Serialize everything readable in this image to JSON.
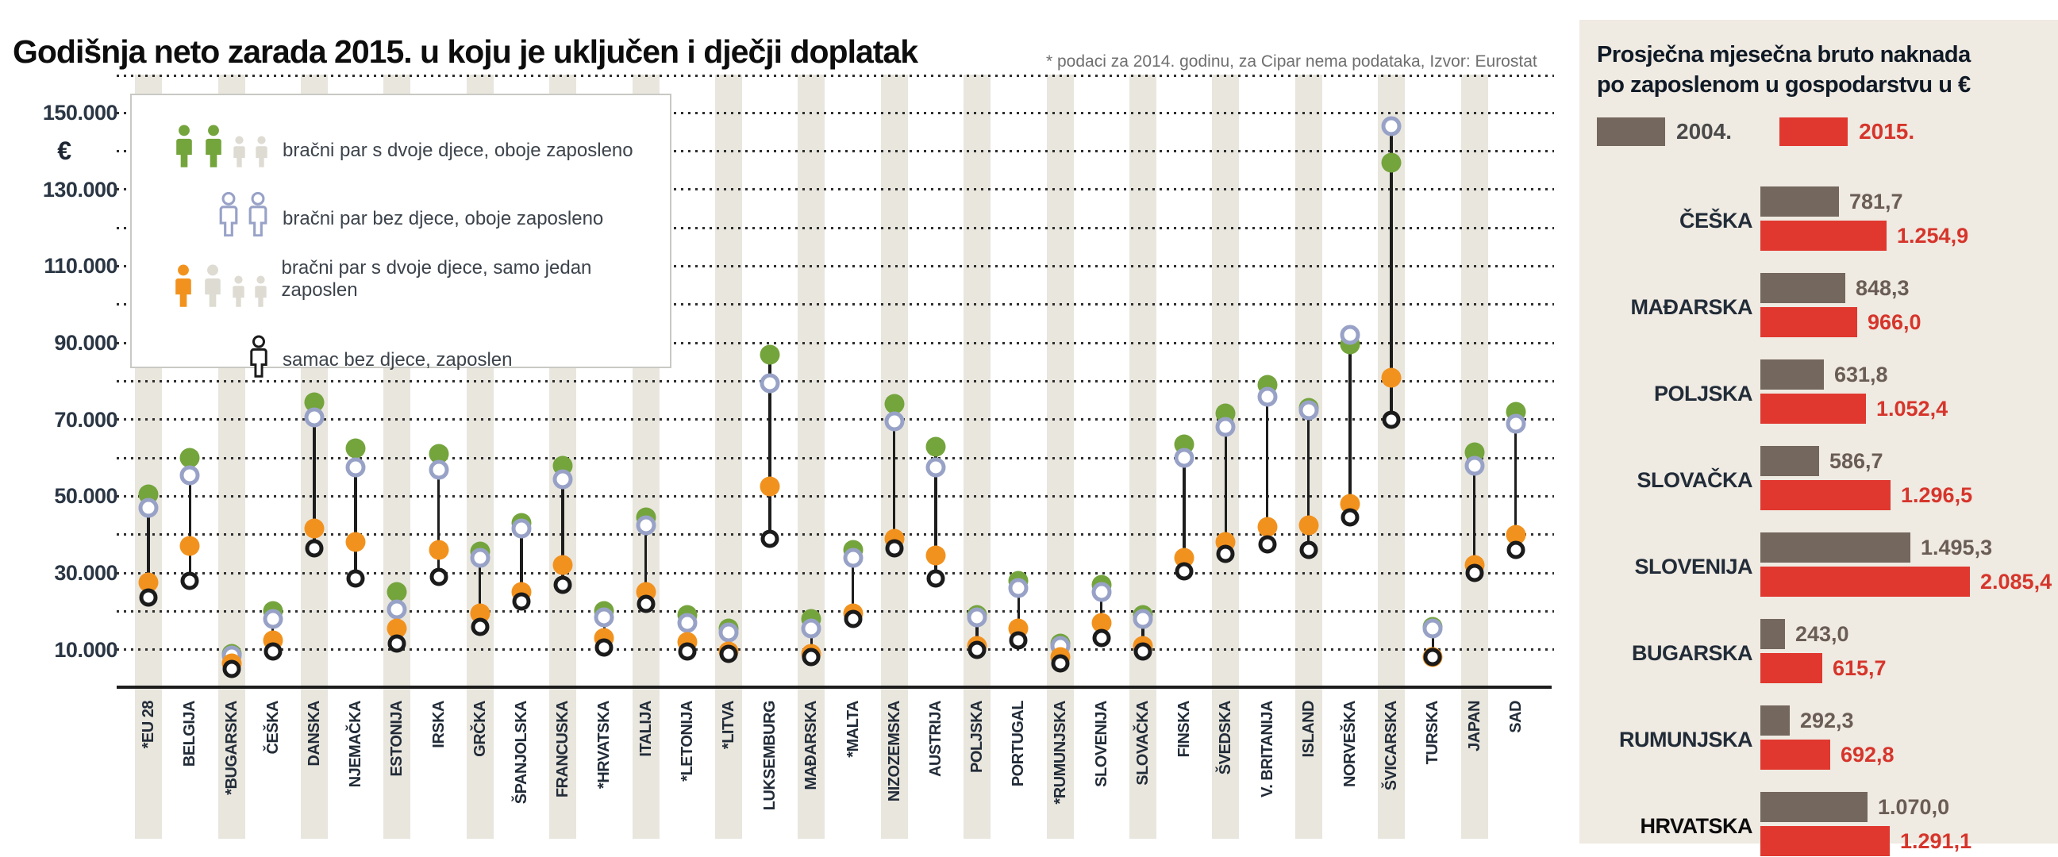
{
  "main": {
    "title": "Godišnja neto zarada 2015. u koju je uključen i dječji doplatak",
    "note": "* podaci za 2014. godinu, za Cipar nema podataka, Izvor: Eurostat",
    "currency_symbol": "€"
  },
  "legend": {
    "items": [
      {
        "series": "both_employed_2kids",
        "label": "bračni par s dvoje djece, oboje zaposleno",
        "color": "#74a43c",
        "style": "filled",
        "icons": "2-green-adults-2-gray-children"
      },
      {
        "series": "both_employed_no_kids",
        "label": "bračni par bez djece, oboje zaposleno",
        "color": "#98a2c7",
        "style": "outline",
        "icons": "2-blue-outline-adults"
      },
      {
        "series": "one_employed_2kids",
        "label": "bračni par s dvoje djece, samo jedan zaposlen",
        "color": "#f2921e",
        "style": "filled",
        "icons": "1-orange-adult-1-gray-adult-2-gray-children"
      },
      {
        "series": "single",
        "label": "samac bez djece, zaposlen",
        "color": "#1b1b1b",
        "style": "outline",
        "icons": "1-black-outline-adult"
      }
    ]
  },
  "panel": {
    "title_line1": "Prosječna mjesečna  bruto naknada",
    "title_line2": "po zaposlenom u gospodarstvu u €",
    "legend": [
      {
        "label": "2004.",
        "color": "#74675e",
        "text_color": "#4a4a4a"
      },
      {
        "label": "2015.",
        "color": "#e0382f",
        "text_color": "#d6352b"
      }
    ]
  },
  "chart_data": [
    {
      "type": "scatter",
      "subtype": "dumbbell",
      "title": "Godišnja neto zarada 2015. u koju je uključen i dječji doplatak",
      "ylabel": "€",
      "ylim": [
        0,
        160000
      ],
      "grid": "dotted-horizontal-every-10000",
      "yticks_labeled": [
        150000,
        130000,
        110000,
        90000,
        70000,
        50000,
        30000,
        10000
      ],
      "ytick_labels": [
        "150.000",
        "130.000",
        "110.000",
        "90.000",
        "70.000",
        "50.000",
        "30.000",
        "10.000"
      ],
      "legend_position": "top-left-inside",
      "series_keys": [
        "both_employed_2kids",
        "both_employed_no_kids",
        "one_employed_2kids",
        "single"
      ],
      "countries": [
        {
          "name": "*EU 28",
          "both_employed_2kids": 50500,
          "both_employed_no_kids": 47000,
          "one_employed_2kids": 27500,
          "single": 23500
        },
        {
          "name": "BELGIJA",
          "both_employed_2kids": 60000,
          "both_employed_no_kids": 55500,
          "one_employed_2kids": 37000,
          "single": 28000
        },
        {
          "name": "*BUGARSKA",
          "both_employed_2kids": 9000,
          "both_employed_no_kids": 8500,
          "one_employed_2kids": 6500,
          "single": 5000
        },
        {
          "name": "ČEŠKA",
          "both_employed_2kids": 20000,
          "both_employed_no_kids": 18000,
          "one_employed_2kids": 12500,
          "single": 9500
        },
        {
          "name": "DANSKA",
          "both_employed_2kids": 74500,
          "both_employed_no_kids": 70500,
          "one_employed_2kids": 41500,
          "single": 36500
        },
        {
          "name": "NJEMAČKA",
          "both_employed_2kids": 62500,
          "both_employed_no_kids": 57500,
          "one_employed_2kids": 38000,
          "single": 28500
        },
        {
          "name": "ESTONIJA",
          "both_employed_2kids": 25000,
          "both_employed_no_kids": 20500,
          "one_employed_2kids": 15500,
          "single": 11500
        },
        {
          "name": "IRSKA",
          "both_employed_2kids": 61000,
          "both_employed_no_kids": 57000,
          "one_employed_2kids": 36000,
          "single": 29000
        },
        {
          "name": "GRČKA",
          "both_employed_2kids": 35500,
          "both_employed_no_kids": 34000,
          "one_employed_2kids": 19500,
          "single": 16000
        },
        {
          "name": "ŠPANJOLSKA",
          "both_employed_2kids": 43000,
          "both_employed_no_kids": 41500,
          "one_employed_2kids": 25000,
          "single": 22500
        },
        {
          "name": "FRANCUSKA",
          "both_employed_2kids": 58000,
          "both_employed_no_kids": 54500,
          "one_employed_2kids": 32000,
          "single": 27000
        },
        {
          "name": "*HRVATSKA",
          "both_employed_2kids": 20000,
          "both_employed_no_kids": 18500,
          "one_employed_2kids": 13000,
          "single": 10500
        },
        {
          "name": "ITALIJA",
          "both_employed_2kids": 44500,
          "both_employed_no_kids": 42500,
          "one_employed_2kids": 25000,
          "single": 22000
        },
        {
          "name": "*LETONIJA",
          "both_employed_2kids": 19000,
          "both_employed_no_kids": 17000,
          "one_employed_2kids": 12000,
          "single": 9500
        },
        {
          "name": "*LITVA",
          "both_employed_2kids": 15500,
          "both_employed_no_kids": 14500,
          "one_employed_2kids": 9500,
          "single": 9000
        },
        {
          "name": "LUKSEMBURG",
          "both_employed_2kids": 87000,
          "both_employed_no_kids": 79500,
          "one_employed_2kids": 52500,
          "single": 39000
        },
        {
          "name": "MAĐARSKA",
          "both_employed_2kids": 18000,
          "both_employed_no_kids": 15500,
          "one_employed_2kids": 9000,
          "single": 8000
        },
        {
          "name": "*MALTA",
          "both_employed_2kids": 36000,
          "both_employed_no_kids": 34000,
          "one_employed_2kids": 19500,
          "single": 18000
        },
        {
          "name": "NIZOZEMSKA",
          "both_employed_2kids": 74000,
          "both_employed_no_kids": 69500,
          "one_employed_2kids": 39000,
          "single": 36500
        },
        {
          "name": "AUSTRIJA",
          "both_employed_2kids": 63000,
          "both_employed_no_kids": 57500,
          "one_employed_2kids": 34500,
          "single": 28500
        },
        {
          "name": "POLJSKA",
          "both_employed_2kids": 19000,
          "both_employed_no_kids": 18500,
          "one_employed_2kids": 11000,
          "single": 10000
        },
        {
          "name": "PORTUGAL",
          "both_employed_2kids": 28000,
          "both_employed_no_kids": 26000,
          "one_employed_2kids": 15500,
          "single": 12500
        },
        {
          "name": "*RUMUNJSKA",
          "both_employed_2kids": 11500,
          "both_employed_no_kids": 11000,
          "one_employed_2kids": 8000,
          "single": 6500
        },
        {
          "name": "SLOVENIJA",
          "both_employed_2kids": 27000,
          "both_employed_no_kids": 25000,
          "one_employed_2kids": 17000,
          "single": 13000
        },
        {
          "name": "SLOVAČKA",
          "both_employed_2kids": 19000,
          "both_employed_no_kids": 18000,
          "one_employed_2kids": 11000,
          "single": 9500
        },
        {
          "name": "FINSKA",
          "both_employed_2kids": 63500,
          "both_employed_no_kids": 60000,
          "one_employed_2kids": 34000,
          "single": 30500
        },
        {
          "name": "ŠVEDSKA",
          "both_employed_2kids": 71500,
          "both_employed_no_kids": 68000,
          "one_employed_2kids": 38000,
          "single": 35000
        },
        {
          "name": "V. BRITANIJA",
          "both_employed_2kids": 79000,
          "both_employed_no_kids": 76000,
          "one_employed_2kids": 42000,
          "single": 37500
        },
        {
          "name": "ISLAND",
          "both_employed_2kids": 73000,
          "both_employed_no_kids": 72500,
          "one_employed_2kids": 42500,
          "single": 36000
        },
        {
          "name": "NORVEŠKA",
          "both_employed_2kids": 89500,
          "both_employed_no_kids": 92000,
          "one_employed_2kids": 48000,
          "single": 44500
        },
        {
          "name": "ŠVICARSKA",
          "both_employed_2kids": 137000,
          "both_employed_no_kids": 146500,
          "one_employed_2kids": 81000,
          "single": 70000
        },
        {
          "name": "TURSKA",
          "both_employed_2kids": 16000,
          "both_employed_no_kids": 15500,
          "one_employed_2kids": 8000,
          "single": 8000
        },
        {
          "name": "JAPAN",
          "both_employed_2kids": 61500,
          "both_employed_no_kids": 58000,
          "one_employed_2kids": 32000,
          "single": 30000
        },
        {
          "name": "SAD",
          "both_employed_2kids": 72000,
          "both_employed_no_kids": 69000,
          "one_employed_2kids": 40000,
          "single": 36000
        }
      ]
    },
    {
      "type": "bar",
      "orientation": "horizontal",
      "title": "Prosječna mjesečna bruto naknada po zaposlenom u gospodarstvu u €",
      "series": [
        {
          "name": "2004.",
          "color": "#74675e"
        },
        {
          "name": "2015.",
          "color": "#e0382f"
        }
      ],
      "xlim": [
        0,
        2200
      ],
      "rows": [
        {
          "country": "ČEŠKA",
          "v2004": 781.7,
          "v2015": 1254.9,
          "d2004": "781,7",
          "d2015": "1.254,9",
          "bold": false
        },
        {
          "country": "MAĐARSKA",
          "v2004": 848.3,
          "v2015": 966.0,
          "d2004": "848,3",
          "d2015": "966,0",
          "bold": false
        },
        {
          "country": "POLJSKA",
          "v2004": 631.8,
          "v2015": 1052.4,
          "d2004": "631,8",
          "d2015": "1.052,4",
          "bold": false
        },
        {
          "country": "SLOVAČKA",
          "v2004": 586.7,
          "v2015": 1296.5,
          "d2004": "586,7",
          "d2015": "1.296,5",
          "bold": false
        },
        {
          "country": "SLOVENIJA",
          "v2004": 1495.3,
          "v2015": 2085.4,
          "d2004": "1.495,3",
          "d2015": "2.085,4",
          "bold": false
        },
        {
          "country": "BUGARSKA",
          "v2004": 243.0,
          "v2015": 615.7,
          "d2004": "243,0",
          "d2015": "615,7",
          "bold": false
        },
        {
          "country": "RUMUNJSKA",
          "v2004": 292.3,
          "v2015": 692.8,
          "d2004": "292,3",
          "d2015": "692,8",
          "bold": false
        },
        {
          "country": "HRVATSKA",
          "v2004": 1070.0,
          "v2015": 1291.1,
          "d2004": "1.070,0",
          "d2015": "1.291,1",
          "bold": true
        }
      ]
    }
  ]
}
